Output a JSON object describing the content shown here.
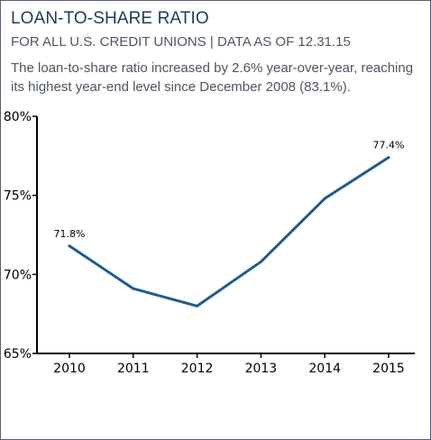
{
  "header": {
    "title": "LOAN-TO-SHARE RATIO",
    "subtitle": "FOR ALL U.S. CREDIT UNIONS | DATA AS OF 12.31.15",
    "description": "The loan-to-share ratio increased by 2.6% year-over-year, reaching its highest year-end level since December 2008 (83.1%)."
  },
  "colors": {
    "line": "#1f5b8f",
    "title": "#1f3a5a",
    "text": "#4d5662"
  },
  "chart_data": {
    "type": "line",
    "title": "LOAN-TO-SHARE RATIO",
    "subtitle": "FOR ALL U.S. CREDIT UNIONS | DATA AS OF 12.31.15",
    "xlabel": "",
    "ylabel": "",
    "categories": [
      "2010",
      "2011",
      "2012",
      "2013",
      "2014",
      "2015"
    ],
    "series": [
      {
        "values": [
          71.8,
          69.1,
          68.0,
          70.8,
          74.8,
          77.4
        ]
      }
    ],
    "ylim": [
      65,
      80
    ],
    "yticks": [
      65,
      70,
      75,
      80
    ],
    "ytick_labels": [
      "65%",
      "70%",
      "75%",
      "80%"
    ],
    "data_labels": [
      {
        "index": 0,
        "text": "71.8%"
      },
      {
        "index": 5,
        "text": "77.4%"
      }
    ],
    "grid": false,
    "legend": "none"
  }
}
